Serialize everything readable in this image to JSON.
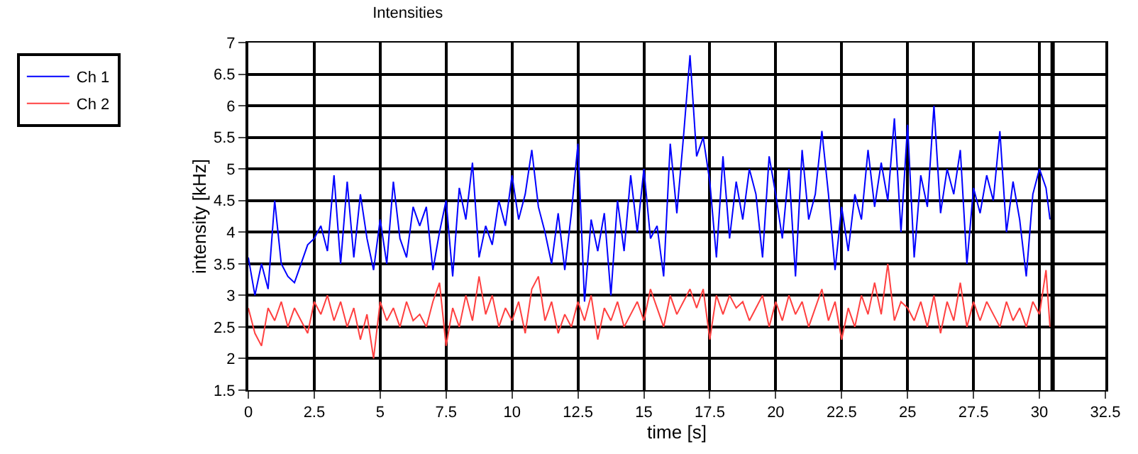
{
  "chart_data": {
    "type": "line",
    "title": "Intensities",
    "xlabel": "time [s]",
    "ylabel": "intensity [kHz]",
    "x": [
      0,
      0.25,
      0.5,
      0.75,
      1,
      1.25,
      1.5,
      1.75,
      2,
      2.25,
      2.5,
      2.75,
      3,
      3.25,
      3.5,
      3.75,
      4,
      4.25,
      4.5,
      4.75,
      5,
      5.25,
      5.5,
      5.75,
      6,
      6.25,
      6.5,
      6.75,
      7,
      7.25,
      7.5,
      7.75,
      8,
      8.25,
      8.5,
      8.75,
      9,
      9.25,
      9.5,
      9.75,
      10,
      10.25,
      10.5,
      10.75,
      11,
      11.25,
      11.5,
      11.75,
      12,
      12.25,
      12.5,
      12.75,
      13,
      13.25,
      13.5,
      13.75,
      14,
      14.25,
      14.5,
      14.75,
      15,
      15.25,
      15.5,
      15.75,
      16,
      16.25,
      16.5,
      16.75,
      17,
      17.25,
      17.5,
      17.75,
      18,
      18.25,
      18.5,
      18.75,
      19,
      19.25,
      19.5,
      19.75,
      20,
      20.25,
      20.5,
      20.75,
      21,
      21.25,
      21.5,
      21.75,
      22,
      22.25,
      22.5,
      22.75,
      23,
      23.25,
      23.5,
      23.75,
      24,
      24.25,
      24.5,
      24.75,
      25,
      25.25,
      25.5,
      25.75,
      26,
      26.25,
      26.5,
      26.75,
      27,
      27.25,
      27.5,
      27.75,
      28,
      28.25,
      28.5,
      28.75,
      29,
      29.25,
      29.5,
      29.75,
      30,
      30.25,
      30.4
    ],
    "series": [
      {
        "name": "Ch 1",
        "color": "#0000ff",
        "values": [
          3.6,
          3.0,
          3.5,
          3.1,
          4.5,
          3.5,
          3.3,
          3.2,
          3.5,
          3.8,
          3.9,
          4.1,
          3.7,
          4.9,
          3.5,
          4.8,
          3.6,
          4.6,
          3.9,
          3.4,
          4.2,
          3.5,
          4.8,
          3.9,
          3.6,
          4.4,
          4.1,
          4.4,
          3.4,
          4.0,
          4.5,
          3.3,
          4.7,
          4.2,
          5.1,
          3.6,
          4.1,
          3.8,
          4.5,
          4.1,
          4.9,
          4.2,
          4.6,
          5.3,
          4.4,
          4.0,
          3.5,
          4.3,
          3.4,
          4.3,
          5.4,
          2.9,
          4.2,
          3.7,
          4.3,
          3.0,
          4.5,
          3.7,
          4.9,
          4.0,
          5.0,
          3.9,
          4.1,
          3.3,
          5.4,
          4.3,
          5.5,
          6.8,
          5.2,
          5.5,
          4.8,
          3.6,
          5.2,
          3.9,
          4.8,
          4.2,
          5.0,
          4.6,
          3.6,
          5.2,
          4.6,
          3.9,
          5.0,
          3.3,
          5.3,
          4.2,
          4.6,
          5.6,
          4.6,
          3.4,
          4.4,
          3.7,
          4.6,
          4.2,
          5.3,
          4.4,
          5.1,
          4.5,
          5.8,
          4.0,
          5.7,
          3.6,
          4.9,
          4.4,
          6.0,
          4.3,
          5.0,
          4.6,
          5.3,
          3.5,
          4.7,
          4.3,
          4.9,
          4.5,
          5.6,
          4.0,
          4.8,
          4.2,
          3.3,
          4.6,
          5.0,
          4.7,
          4.2
        ]
      },
      {
        "name": "Ch 2",
        "color": "#ff4040",
        "values": [
          2.8,
          2.4,
          2.2,
          2.8,
          2.6,
          2.9,
          2.5,
          2.8,
          2.6,
          2.4,
          2.9,
          2.7,
          3.0,
          2.6,
          2.9,
          2.5,
          2.8,
          2.3,
          2.7,
          2.0,
          2.9,
          2.6,
          2.8,
          2.5,
          2.9,
          2.6,
          2.7,
          2.5,
          2.9,
          3.2,
          2.2,
          2.8,
          2.5,
          3.0,
          2.6,
          3.3,
          2.7,
          3.0,
          2.5,
          2.8,
          2.6,
          2.9,
          2.4,
          3.1,
          3.3,
          2.6,
          2.9,
          2.4,
          2.7,
          2.5,
          2.9,
          2.6,
          3.0,
          2.3,
          2.8,
          2.6,
          2.9,
          2.5,
          2.7,
          2.9,
          2.6,
          3.1,
          2.8,
          2.5,
          3.0,
          2.7,
          2.9,
          3.1,
          2.8,
          3.1,
          2.3,
          3.0,
          2.7,
          3.0,
          2.8,
          2.9,
          2.6,
          2.8,
          3.0,
          2.5,
          2.9,
          2.6,
          3.0,
          2.7,
          2.9,
          2.5,
          2.8,
          3.1,
          2.6,
          2.9,
          2.3,
          2.8,
          2.5,
          3.0,
          2.7,
          3.2,
          2.7,
          3.5,
          2.6,
          2.9,
          2.8,
          2.6,
          2.9,
          2.5,
          3.0,
          2.4,
          2.9,
          2.6,
          3.2,
          2.5,
          2.9,
          2.6,
          2.9,
          2.7,
          2.5,
          2.9,
          2.6,
          2.8,
          2.5,
          2.9,
          2.7,
          3.4,
          2.5
        ]
      }
    ],
    "xlim": [
      0,
      32.5
    ],
    "xticks": [
      0,
      2.5,
      5,
      7.5,
      10,
      12.5,
      15,
      17.5,
      20,
      22.5,
      25,
      27.5,
      30,
      32.5
    ],
    "ylim": [
      1.5,
      7
    ],
    "yticks": [
      1.5,
      2,
      2.5,
      3,
      3.5,
      4,
      4.5,
      5,
      5.5,
      6,
      6.5,
      7
    ],
    "ref_lines": [
      {
        "axis": "x",
        "value": 30.5,
        "color": "#000000"
      }
    ],
    "grid": true,
    "legend": "top left",
    "marker": "none",
    "line_style": "solid"
  }
}
